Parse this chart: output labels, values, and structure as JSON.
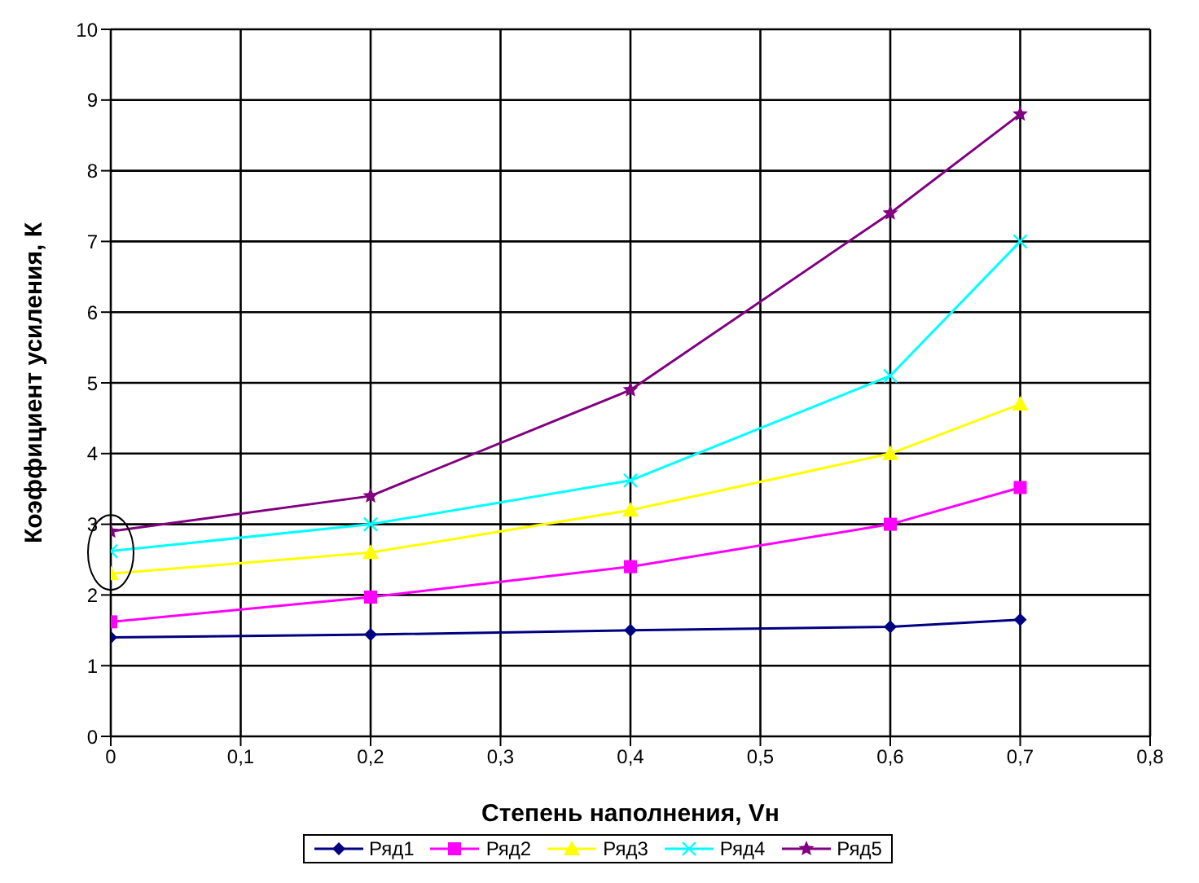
{
  "chart_data": {
    "type": "line",
    "xlabel": "Степень наполнения, Vн",
    "ylabel": "Коэффициент усиления, К",
    "x": [
      0,
      0.2,
      0.4,
      0.6,
      0.7
    ],
    "series": [
      {
        "name": "Ряд1",
        "color": "#000080",
        "marker": "diamond",
        "values": [
          1.4,
          1.44,
          1.5,
          1.55,
          1.65
        ]
      },
      {
        "name": "Ряд2",
        "color": "#ff00ff",
        "marker": "square",
        "values": [
          1.62,
          1.97,
          2.4,
          3.0,
          3.52
        ]
      },
      {
        "name": "Ряд3",
        "color": "#ffff00",
        "marker": "triangle",
        "values": [
          2.3,
          2.6,
          3.2,
          4.0,
          4.7
        ]
      },
      {
        "name": "Ряд4",
        "color": "#00ffff",
        "marker": "cross",
        "values": [
          2.62,
          3.0,
          3.62,
          5.1,
          7.0
        ]
      },
      {
        "name": "Ряд5",
        "color": "#800080",
        "marker": "star",
        "values": [
          2.9,
          3.4,
          4.9,
          7.4,
          8.8
        ]
      }
    ],
    "xlim": [
      0,
      0.8
    ],
    "xticks": [
      0,
      {
        "value": 0.1,
        "label": "0,1"
      },
      {
        "value": 0.2,
        "label": "0,2"
      },
      {
        "value": 0.3,
        "label": "0,3"
      },
      {
        "value": 0.4,
        "label": "0,4"
      },
      {
        "value": 0.5,
        "label": "0,5"
      },
      {
        "value": 0.6,
        "label": "0,6"
      },
      {
        "value": 0.7,
        "label": "0,7"
      },
      {
        "value": 0.8,
        "label": "0,8"
      }
    ],
    "ylim": [
      0,
      10
    ],
    "yticks": [
      0,
      1,
      2,
      3,
      4,
      5,
      6,
      7,
      8,
      9,
      10
    ],
    "grid": true,
    "legend": "bottom",
    "line_style": "solid"
  }
}
